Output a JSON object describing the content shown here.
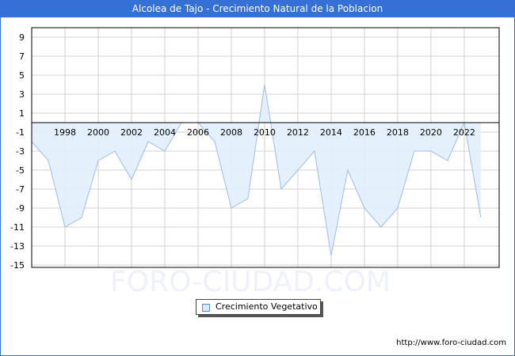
{
  "title": "Alcolea de Tajo - Crecimiento Natural de la Poblacion",
  "legend": {
    "label": "Crecimiento Vegetativo",
    "swatch_color": "#d8e8fb",
    "line_color": "#9bbde8"
  },
  "watermark": "FORO-CIUDAD.COM",
  "footer_url": "http://www.foro-ciudad.com",
  "colors": {
    "header": "#3470d6",
    "fill": "#e1effc",
    "line": "#9bbde8",
    "grid": "#d0d0d0"
  },
  "chart_data": {
    "type": "area",
    "title": "Alcolea de Tajo - Crecimiento Natural de la Poblacion",
    "xlabel": "",
    "ylabel": "",
    "x": [
      1996,
      1997,
      1998,
      1999,
      2000,
      2001,
      2002,
      2003,
      2004,
      2005,
      2006,
      2007,
      2008,
      2009,
      2010,
      2011,
      2012,
      2013,
      2014,
      2015,
      2016,
      2017,
      2018,
      2019,
      2020,
      2021,
      2022,
      2023
    ],
    "series": [
      {
        "name": "Crecimiento Vegetativo",
        "values": [
          -2,
          -4,
          -11,
          -10,
          -4,
          -3,
          -6,
          -2,
          -3,
          0,
          0,
          -2,
          -9,
          -8,
          4,
          -7,
          -5,
          -3,
          -14,
          -5,
          -9,
          -11,
          -9,
          -3,
          -3,
          -4,
          0,
          -10
        ]
      }
    ],
    "x_tick_labels": [
      "1998",
      "2000",
      "2002",
      "2004",
      "2006",
      "2008",
      "2010",
      "2012",
      "2014",
      "2016",
      "2018",
      "2020",
      "2022"
    ],
    "y_tick_labels": [
      "9",
      "7",
      "5",
      "3",
      "1",
      "-1",
      "-3",
      "-5",
      "-7",
      "-9",
      "-11",
      "-13",
      "-15"
    ],
    "ylim": [
      -15.25,
      10
    ],
    "xlim": [
      1996,
      2024.1
    ],
    "grid": true,
    "legend_position": "bottom-center"
  }
}
